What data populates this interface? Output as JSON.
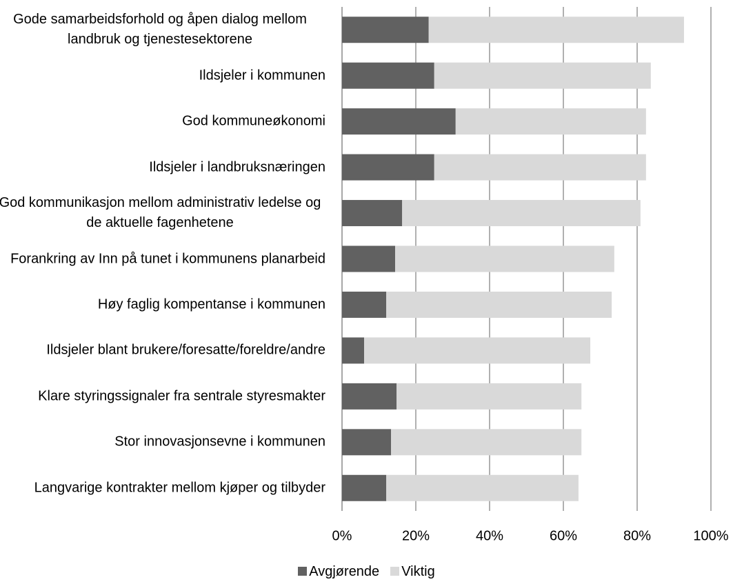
{
  "chart_data": {
    "type": "stacked_barh",
    "categories": [
      "Gode samarbeidsforhold og åpen dialog mellom landbruk og tjenestesektorene",
      "Ildsjeler i kommunen",
      "God kommuneøkonomi",
      "Ildsjeler i landbruksnæringen",
      "God kommunikasjon mellom administrativ ledelse og de aktuelle fagenhetene",
      "Forankring av Inn på tunet i kommunens planarbeid",
      "Høy faglig kompentanse i kommunen",
      "Ildsjeler blant brukere/foresatte/foreldre/andre",
      "Klare styringssignaler fra sentrale styresmakter",
      "Stor innovasjonsevne i kommunen",
      "Langvarige kontrakter mellom kjøper og tilbyder"
    ],
    "series": [
      {
        "name": "Avgjørende",
        "color": "#616161",
        "values": [
          23.5,
          25,
          30.8,
          25,
          16.3,
          14.4,
          12,
          6,
          14.8,
          13.3,
          12
        ]
      },
      {
        "name": "Viktig",
        "color": "#d9d9d9",
        "values": [
          69.2,
          58.7,
          51.6,
          57.4,
          64.6,
          59.4,
          61.1,
          61.3,
          50.1,
          51.6,
          52.1
        ]
      }
    ],
    "xlim": [
      0,
      100
    ],
    "xticks": [
      {
        "value": 0,
        "label": "0%"
      },
      {
        "value": 20,
        "label": "20%"
      },
      {
        "value": 40,
        "label": "40%"
      },
      {
        "value": 60,
        "label": "60%"
      },
      {
        "value": 80,
        "label": "80%"
      },
      {
        "value": 100,
        "label": "100%"
      }
    ],
    "grid": true,
    "legend": "bottom"
  }
}
